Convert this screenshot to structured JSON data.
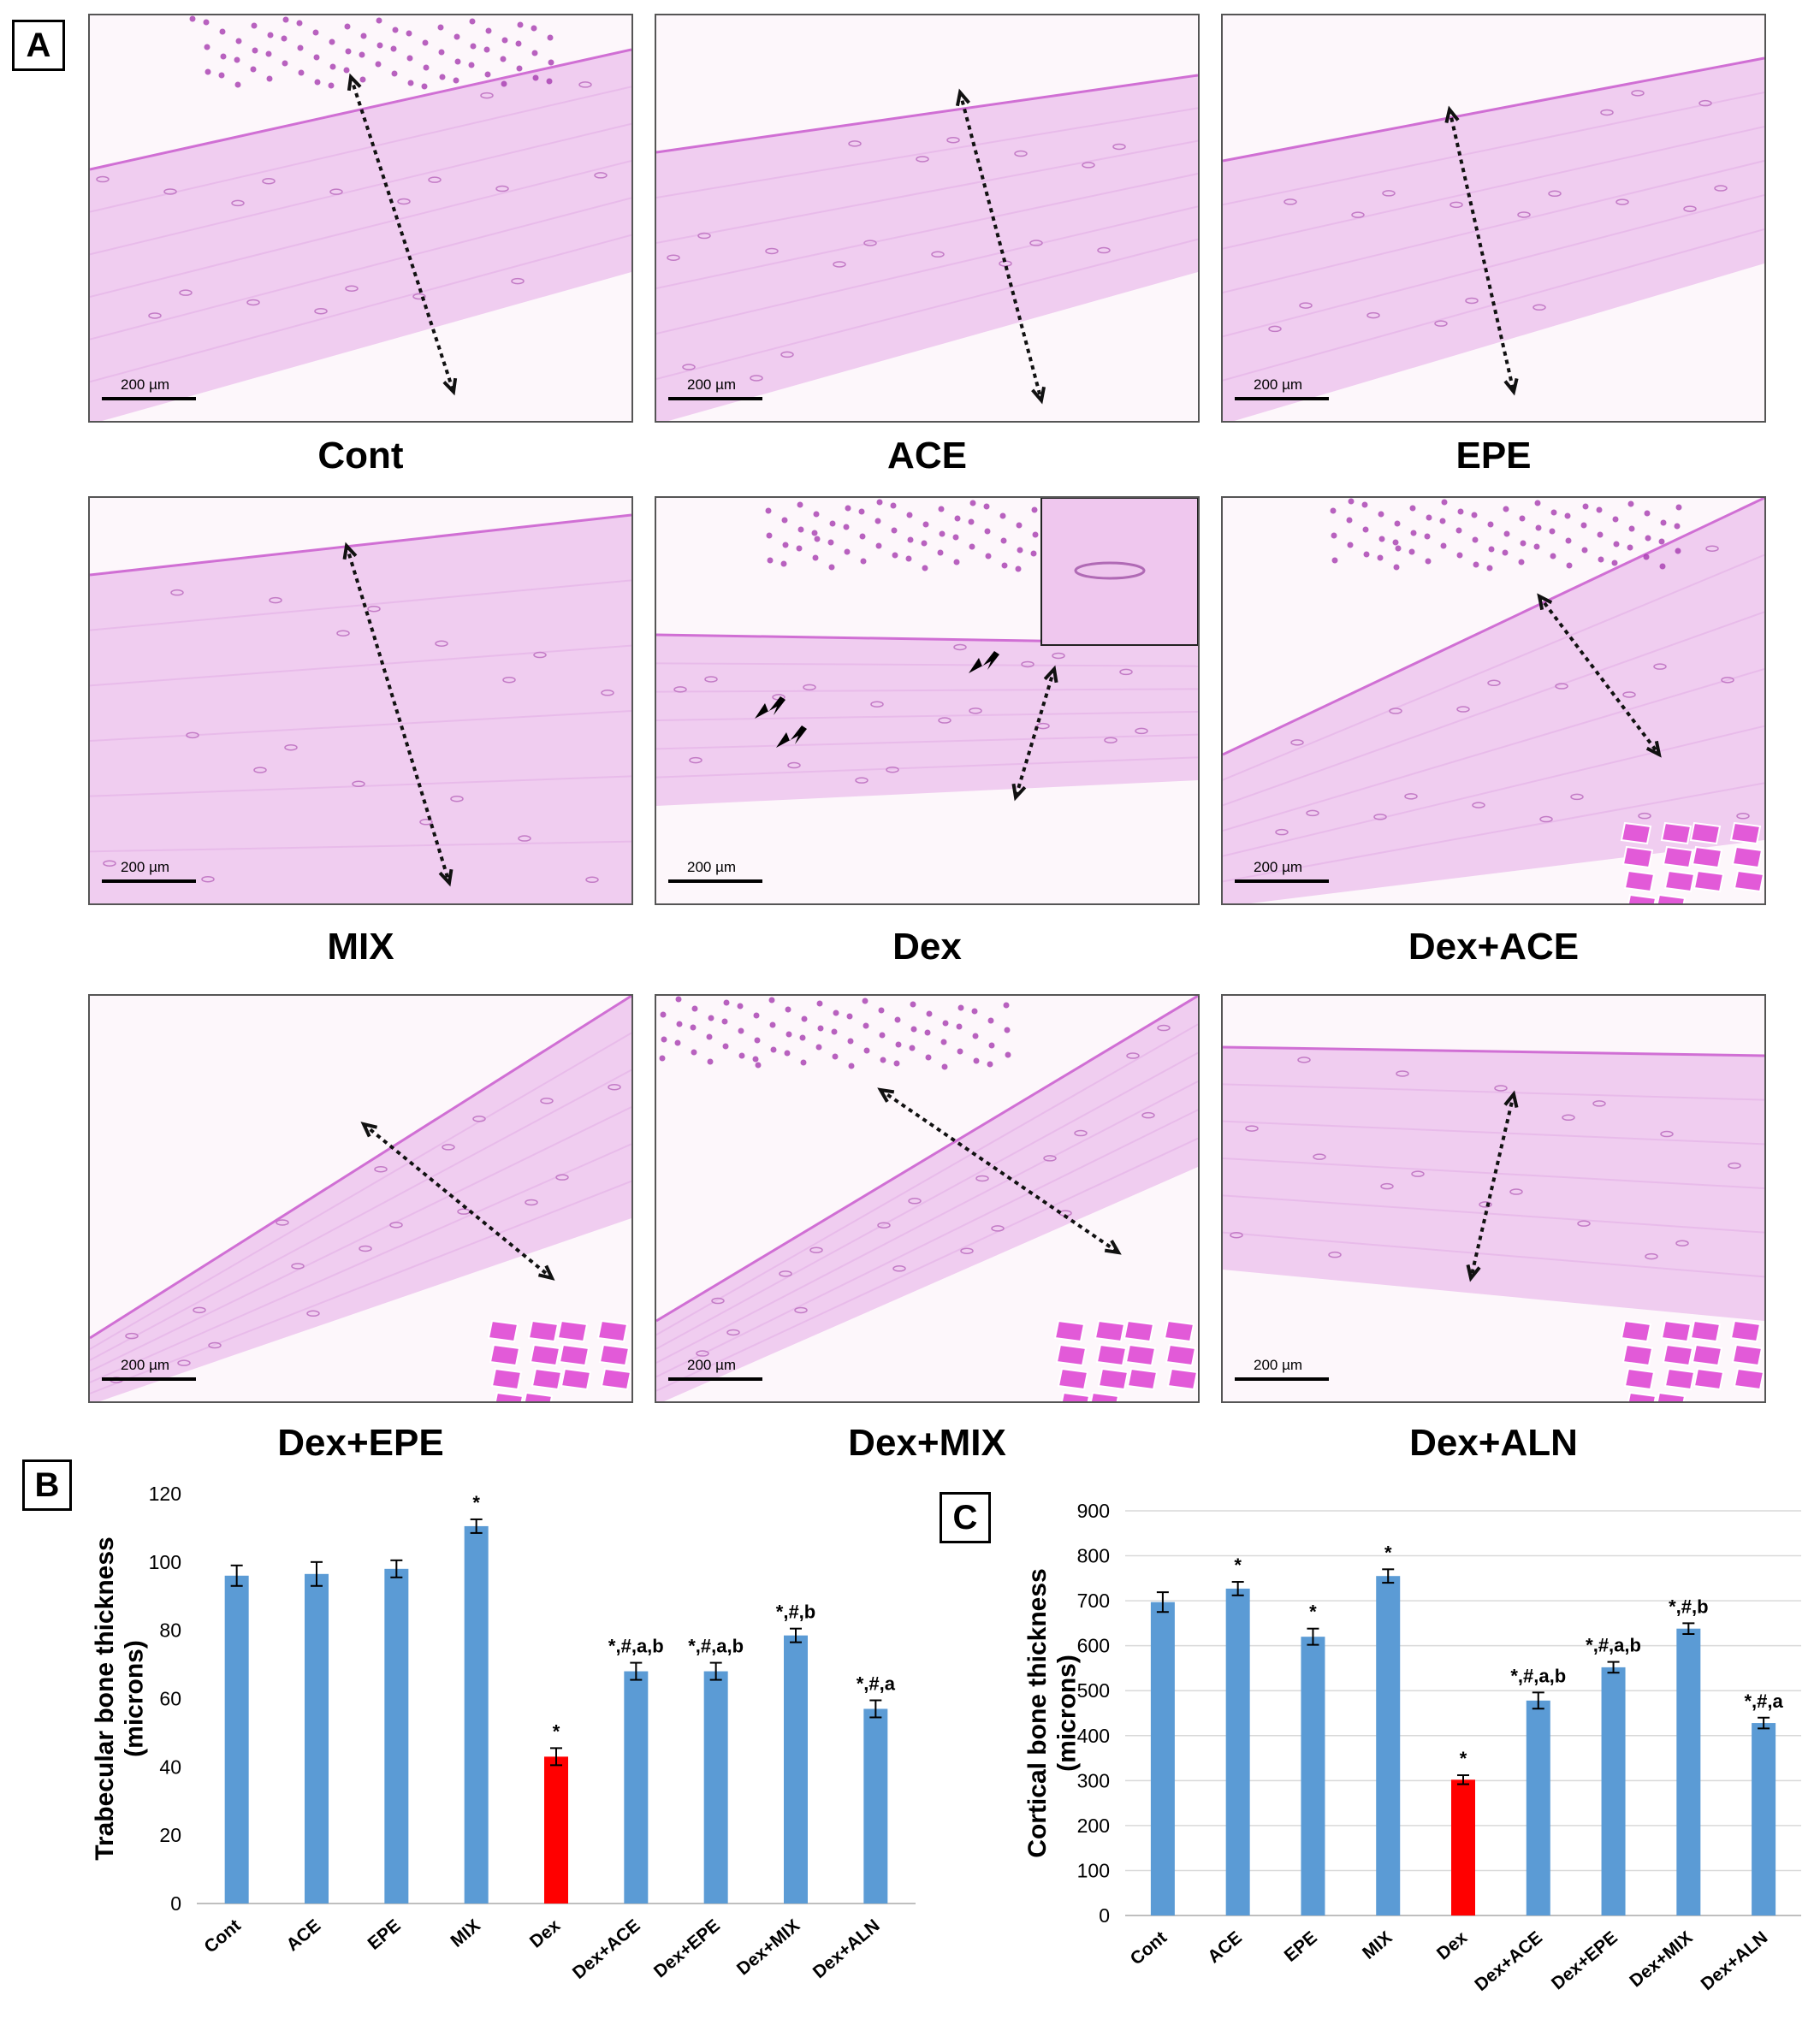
{
  "panel_labels": {
    "a": "A",
    "b": "B",
    "c": "C"
  },
  "scale_bar_text": "200 µm",
  "micrographs": [
    {
      "label": "Cont"
    },
    {
      "label": "ACE"
    },
    {
      "label": "EPE"
    },
    {
      "label": "MIX"
    },
    {
      "label": "Dex"
    },
    {
      "label": "Dex+ACE"
    },
    {
      "label": "Dex+EPE"
    },
    {
      "label": "Dex+MIX"
    },
    {
      "label": "Dex+ALN"
    }
  ],
  "colors": {
    "bar": "#5b9bd5",
    "highlight_bar": "#ff0000",
    "gridline": "#d9d9d9",
    "stain_light": "#f0cdf0",
    "stain_dark": "#e0a6e3"
  },
  "chart_data": [
    {
      "type": "bar",
      "panel": "B",
      "ylabel": "Trabecular bone thickness (microns)",
      "ylabel_lines": [
        "Trabecular bone thickness",
        "(microns)"
      ],
      "categories": [
        "Cont",
        "ACE",
        "EPE",
        "MIX",
        "Dex",
        "Dex+ACE",
        "Dex+EPE",
        "Dex+MIX",
        "Dex+ALN"
      ],
      "values": [
        96,
        96.5,
        98,
        110.5,
        43,
        68,
        68,
        78.5,
        57
      ],
      "errors": [
        3,
        3.5,
        2.5,
        2,
        2.5,
        2.5,
        2.5,
        2,
        2.5
      ],
      "annotations": [
        "",
        "",
        "",
        "*",
        "*",
        "*,#,a,b",
        "*,#,a,b",
        "*,#,b",
        "*,#,a"
      ],
      "highlight_index": 4,
      "ylim": [
        0,
        120
      ],
      "yticks": [
        0,
        20,
        40,
        60,
        80,
        100,
        120
      ],
      "grid": false
    },
    {
      "type": "bar",
      "panel": "C",
      "ylabel": "Cortical bone thickness (microns)",
      "ylabel_lines": [
        "Cortical bone thickness",
        "(microns)"
      ],
      "categories": [
        "Cont",
        "ACE",
        "EPE",
        "MIX",
        "Dex",
        "Dex+ACE",
        "Dex+EPE",
        "Dex+MIX",
        "Dex+ALN"
      ],
      "values": [
        697,
        727,
        620,
        755,
        302,
        478,
        552,
        638,
        428
      ],
      "errors": [
        22,
        15,
        18,
        15,
        10,
        18,
        12,
        12,
        12
      ],
      "annotations": [
        "",
        "*",
        "*",
        "*",
        "*",
        "*,#,a,b",
        "*,#,a,b",
        "*,#,b",
        "*,#,a"
      ],
      "highlight_index": 4,
      "ylim": [
        0,
        900
      ],
      "yticks": [
        0,
        100,
        200,
        300,
        400,
        500,
        600,
        700,
        800,
        900
      ],
      "grid": true
    }
  ]
}
